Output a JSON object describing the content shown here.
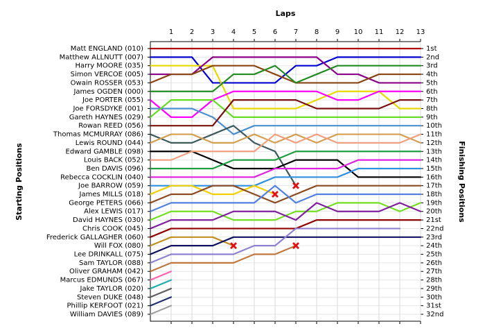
{
  "chart_data": {
    "type": "line",
    "title": "Laps",
    "y_label": "Starting Positions",
    "y2_label": "Finishing Positions",
    "xlim": [
      0,
      13
    ],
    "xticks": [
      1,
      2,
      3,
      4,
      5,
      6,
      7,
      8,
      9,
      10,
      11,
      12,
      13
    ],
    "ylim": [
      1,
      32
    ],
    "yticks": [
      {
        "value": 1,
        "label": "1st"
      },
      {
        "value": 2,
        "label": "2nd"
      },
      {
        "value": 3,
        "label": "3rd"
      },
      {
        "value": 4,
        "label": "4th"
      },
      {
        "value": 5,
        "label": "5th"
      },
      {
        "value": 6,
        "label": "6th"
      },
      {
        "value": 7,
        "label": "7th"
      },
      {
        "value": 8,
        "label": "8th"
      },
      {
        "value": 9,
        "label": "9th"
      },
      {
        "value": 10,
        "label": "10th"
      },
      {
        "value": 11,
        "label": "11th"
      },
      {
        "value": 12,
        "label": "12th"
      },
      {
        "value": 13,
        "label": "13th"
      },
      {
        "value": 14,
        "label": "14th"
      },
      {
        "value": 15,
        "label": "15th"
      },
      {
        "value": 16,
        "label": "16th"
      },
      {
        "value": 17,
        "label": "17th"
      },
      {
        "value": 18,
        "label": "18th"
      },
      {
        "value": 19,
        "label": "19th"
      },
      {
        "value": 20,
        "label": "20th"
      },
      {
        "value": 21,
        "label": "21st"
      },
      {
        "value": 22,
        "label": "22nd"
      },
      {
        "value": 23,
        "label": "23rd"
      },
      {
        "value": 24,
        "label": "24th"
      },
      {
        "value": 25,
        "label": "25th"
      },
      {
        "value": 26,
        "label": "26th"
      },
      {
        "value": 27,
        "label": "27th"
      },
      {
        "value": 28,
        "label": "28th"
      },
      {
        "value": 29,
        "label": "29th"
      },
      {
        "value": 30,
        "label": "30th"
      },
      {
        "value": 31,
        "label": "31st"
      },
      {
        "value": 32,
        "label": "32nd"
      }
    ],
    "x": [
      0,
      1,
      2,
      3,
      4,
      5,
      6,
      7,
      8,
      9,
      10,
      11,
      12,
      13
    ],
    "series": [
      {
        "name": "Matt ENGLAND (010)",
        "color": "#b00000",
        "values": [
          1,
          1,
          1,
          1,
          1,
          1,
          1,
          1,
          1,
          1,
          1,
          1,
          1,
          1
        ]
      },
      {
        "name": "Matthew ALLNUTT (007)",
        "color": "#0000d0",
        "values": [
          2,
          2,
          2,
          5,
          5,
          5,
          5,
          3,
          3,
          2,
          2,
          2,
          2,
          2
        ]
      },
      {
        "name": "Harry MOORE (035)",
        "color": "#e8d800",
        "values": [
          3,
          3,
          3,
          3,
          8,
          8,
          8,
          8,
          7,
          6,
          6,
          6,
          8,
          8
        ]
      },
      {
        "name": "Simon VERCOE (005)",
        "color": "#8b008b",
        "values": [
          4,
          4,
          4,
          2,
          2,
          2,
          2,
          2,
          2,
          4,
          4,
          5,
          5,
          5
        ]
      },
      {
        "name": "Owain ROSSER (053)",
        "color": "#8b4513",
        "values": [
          5,
          4,
          4,
          3,
          3,
          3,
          4,
          5,
          5,
          5,
          5,
          4,
          4,
          4
        ]
      },
      {
        "name": "James OGDEN (000)",
        "color": "#228b22",
        "values": [
          6,
          6,
          6,
          6,
          4,
          4,
          3,
          5,
          4,
          3,
          3,
          3,
          3,
          3
        ]
      },
      {
        "name": "Joe PORTER (055)",
        "color": "#ff00ff",
        "values": [
          7,
          9,
          9,
          7,
          6,
          6,
          6,
          6,
          6,
          7,
          7,
          6,
          6,
          6
        ]
      },
      {
        "name": "Joe FORSDYKE (001)",
        "color": "#4a90d0",
        "values": [
          8,
          8,
          8,
          9,
          11,
          10,
          10,
          10,
          10,
          10,
          10,
          10,
          10,
          10
        ]
      },
      {
        "name": "Gareth HAYNES (029)",
        "color": "#66dd22",
        "values": [
          9,
          7,
          7,
          7,
          9,
          9,
          9,
          9,
          9,
          9,
          9,
          9,
          9,
          9
        ]
      },
      {
        "name": "Rowan REED (056)",
        "color": "#7a1010",
        "values": [
          10,
          10,
          10,
          10,
          7,
          7,
          7,
          7,
          8,
          8,
          8,
          8,
          7,
          7
        ]
      },
      {
        "name": "Thomas MCMURRAY (086)",
        "color": "#3c5a5a",
        "values": [
          11,
          12,
          12,
          11,
          10,
          12,
          13,
          17,
          null,
          null,
          null,
          null,
          null,
          null
        ],
        "retired": true
      },
      {
        "name": "Lewis ROUND (044)",
        "color": "#d4a050",
        "values": [
          12,
          11,
          11,
          12,
          12,
          11,
          12,
          11,
          12,
          11,
          11,
          11,
          11,
          12
        ]
      },
      {
        "name": "Edward GAMBLE (098)",
        "color": "#000000",
        "values": [
          13,
          13,
          13,
          14,
          15,
          15,
          15,
          14,
          14,
          14,
          16,
          16,
          16,
          16
        ]
      },
      {
        "name": "Louis BACK (052)",
        "color": "#f0a080",
        "values": [
          14,
          14,
          13,
          13,
          13,
          13,
          11,
          12,
          11,
          12,
          12,
          12,
          12,
          11
        ]
      },
      {
        "name": "Ben DAVIS (096)",
        "color": "#1e9e3e",
        "values": [
          15,
          15,
          15,
          15,
          14,
          14,
          14,
          13,
          13,
          13,
          13,
          13,
          13,
          13
        ]
      },
      {
        "name": "Rebecca COCKLIN (040)",
        "color": "#e020e0",
        "values": [
          16,
          16,
          16,
          16,
          16,
          16,
          15,
          15,
          15,
          15,
          14,
          14,
          14,
          14
        ]
      },
      {
        "name": "Joe BARROW (059)",
        "color": "#3090e0",
        "values": [
          17,
          17,
          17,
          17,
          17,
          17,
          16,
          16,
          16,
          16,
          15,
          15,
          15,
          15
        ]
      },
      {
        "name": "James MILLS (018)",
        "color": "#f0d000",
        "values": [
          18,
          17,
          17,
          18,
          18,
          17,
          18,
          null,
          null,
          null,
          null,
          null,
          null,
          null
        ],
        "retired": true
      },
      {
        "name": "George PETERS (066)",
        "color": "#8b4a20",
        "values": [
          19,
          18,
          18,
          17,
          17,
          18,
          19,
          18,
          17,
          17,
          17,
          17,
          17,
          17
        ]
      },
      {
        "name": "Alex LEWIS (017)",
        "color": "#5080e0",
        "values": [
          20,
          19,
          19,
          19,
          19,
          19,
          17,
          19,
          18,
          18,
          18,
          18,
          18,
          18
        ]
      },
      {
        "name": "David HAYNES (030)",
        "color": "#70e020",
        "values": [
          21,
          20,
          20,
          20,
          21,
          21,
          21,
          20,
          20,
          19,
          19,
          19,
          20,
          19
        ]
      },
      {
        "name": "Chris COOK (045)",
        "color": "#8020a0",
        "values": [
          22,
          21,
          21,
          21,
          20,
          20,
          20,
          21,
          19,
          20,
          20,
          20,
          19,
          20
        ]
      },
      {
        "name": "Frederick GALLAGHER (060)",
        "color": "#900000",
        "values": [
          23,
          22,
          22,
          22,
          22,
          22,
          22,
          22,
          21,
          21,
          21,
          21,
          21,
          21
        ]
      },
      {
        "name": "Will FOX (080)",
        "color": "#c09020",
        "values": [
          24,
          23,
          23,
          23,
          24,
          null,
          null,
          null,
          null,
          null,
          null,
          null,
          null,
          null
        ],
        "retired": true
      },
      {
        "name": "Lee DRINKALL (075)",
        "color": "#101060",
        "values": [
          25,
          24,
          24,
          24,
          23,
          23,
          23,
          23,
          23,
          23,
          23,
          23,
          23,
          23
        ]
      },
      {
        "name": "Sam TAYLOR (088)",
        "color": "#9080d0",
        "values": [
          26,
          25,
          25,
          25,
          25,
          24,
          24,
          22,
          22,
          22,
          22,
          22,
          22,
          null
        ]
      },
      {
        "name": "Oliver GRAHAM (042)",
        "color": "#c07840",
        "values": [
          27,
          26,
          26,
          26,
          26,
          25,
          25,
          24,
          null,
          null,
          null,
          null,
          null,
          null
        ],
        "retired": true
      },
      {
        "name": "Marcus EDMUNDS (067)",
        "color": "#ff60b0",
        "values": [
          28,
          27,
          null,
          null,
          null,
          null,
          null,
          null,
          null,
          null,
          null,
          null,
          null,
          null
        ]
      },
      {
        "name": "Jake TAYLOR (020)",
        "color": "#20b0b0",
        "values": [
          29,
          28,
          null,
          null,
          null,
          null,
          null,
          null,
          null,
          null,
          null,
          null,
          null,
          null
        ]
      },
      {
        "name": "Steven DUKE (048)",
        "color": "#606060",
        "values": [
          30,
          29,
          null,
          null,
          null,
          null,
          null,
          null,
          null,
          null,
          null,
          null,
          null,
          null
        ]
      },
      {
        "name": "Phillip KERFOOT (021)",
        "color": "#203070",
        "values": [
          31,
          30,
          null,
          null,
          null,
          null,
          null,
          null,
          null,
          null,
          null,
          null,
          null,
          null
        ]
      },
      {
        "name": "William DAVIES (089)",
        "color": "#a0a0a0",
        "values": [
          32,
          31,
          null,
          null,
          null,
          null,
          null,
          null,
          null,
          null,
          null,
          null,
          null,
          null
        ]
      }
    ]
  }
}
